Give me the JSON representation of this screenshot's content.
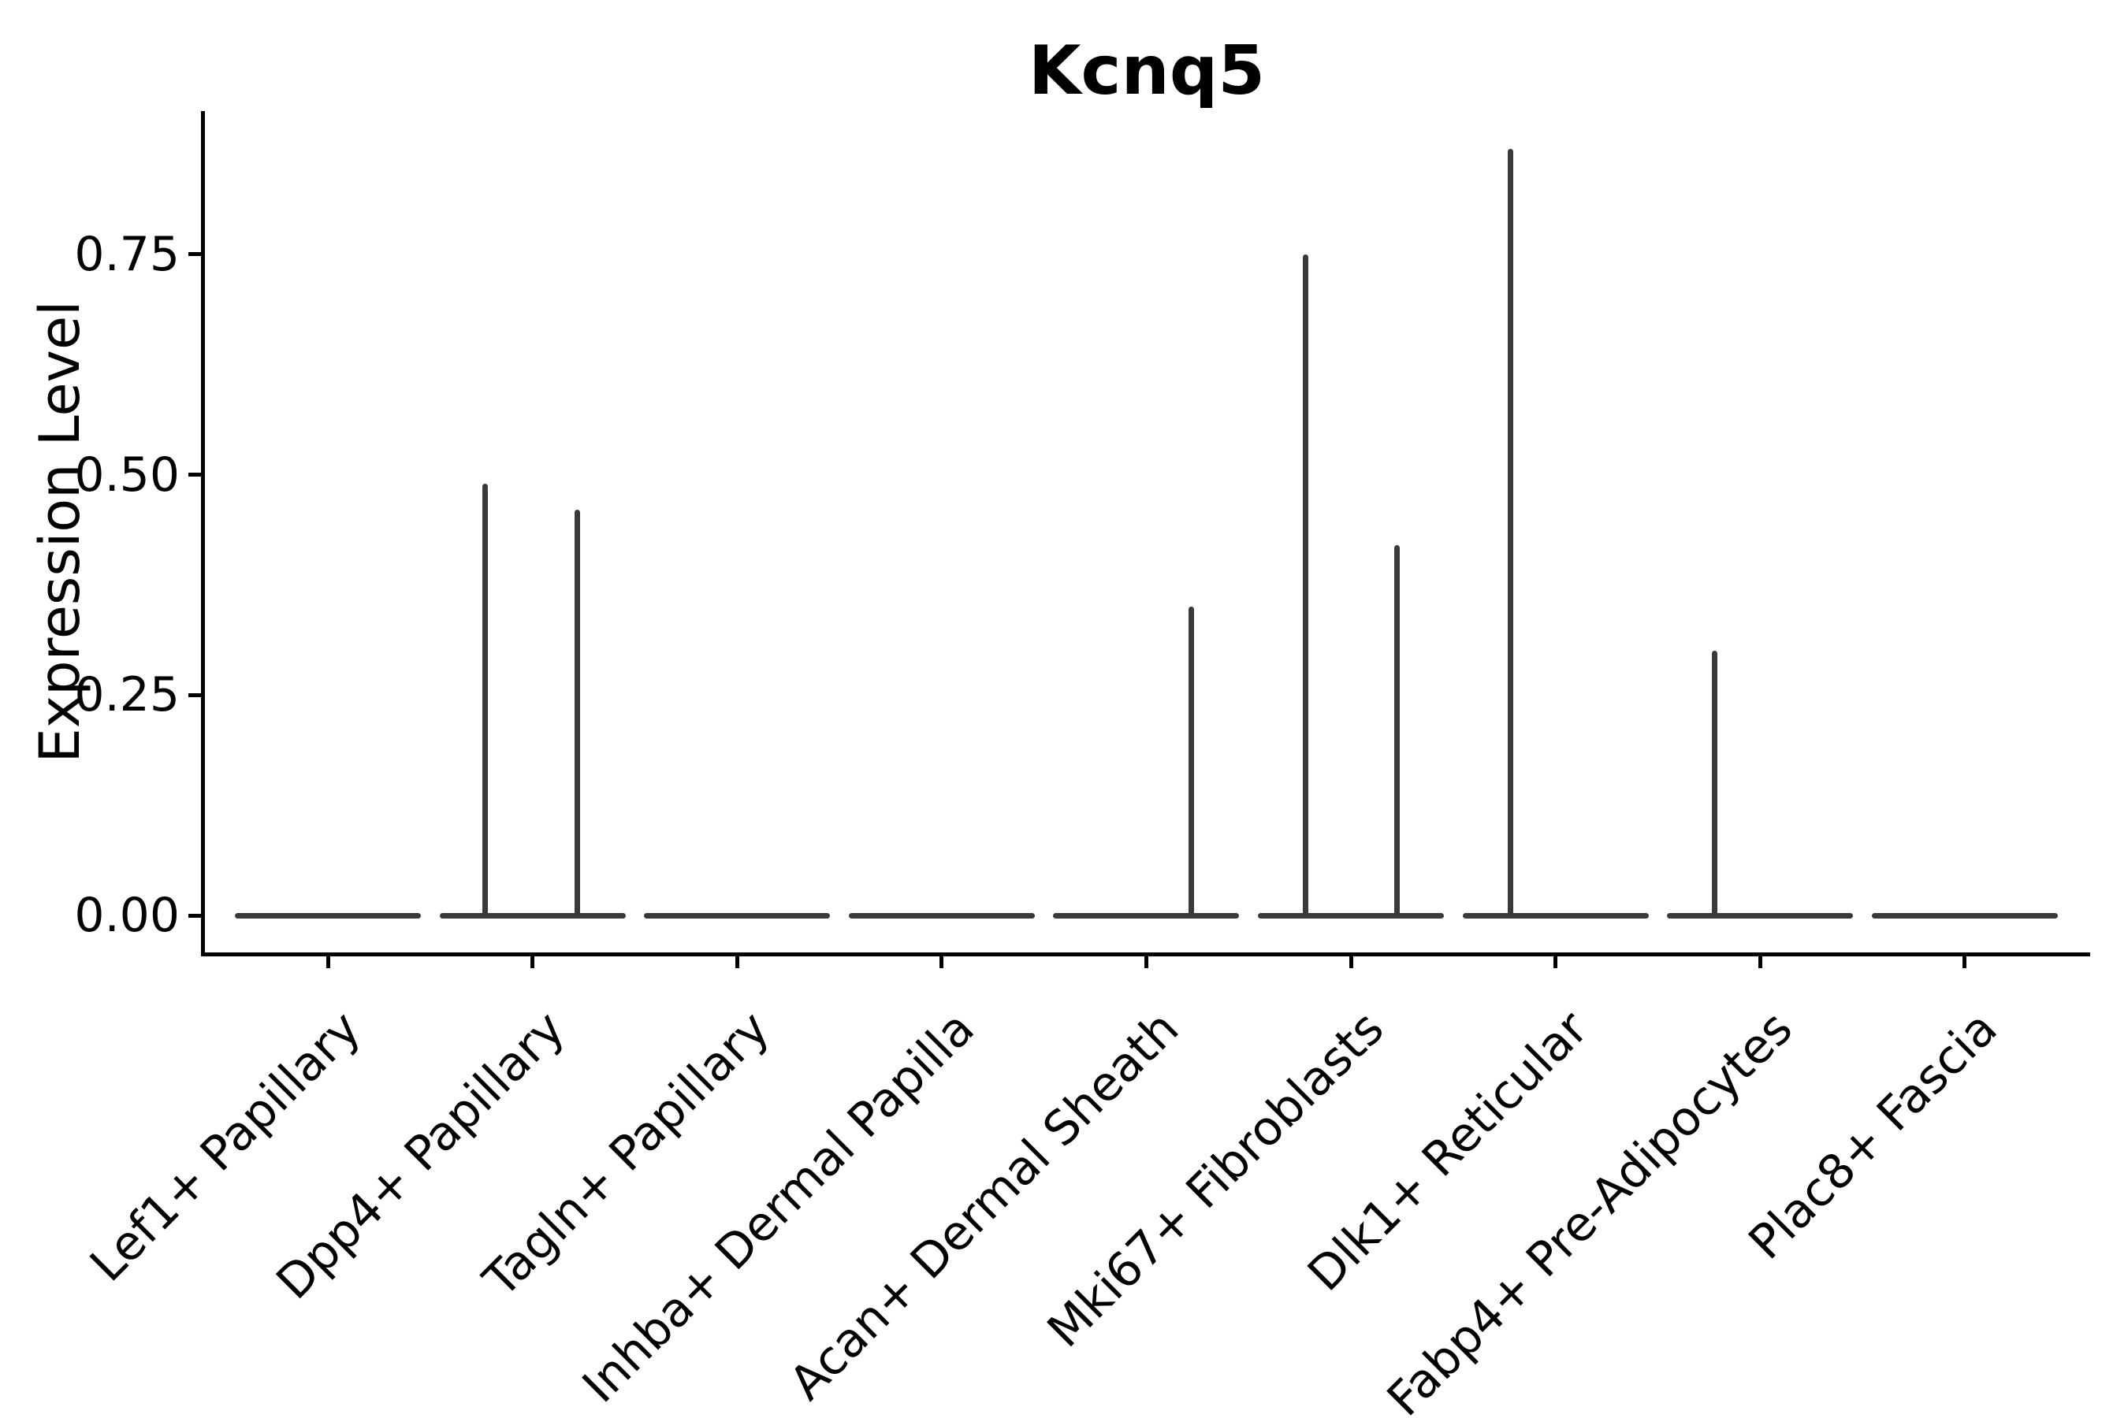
{
  "colors": {
    "violin_outline": "#3a3a3a",
    "axis": "#000000",
    "text": "#000000",
    "background": "#ffffff"
  },
  "chart_data": {
    "type": "violin",
    "title": "Kcnq5",
    "xlabel": "",
    "ylabel": "Expression Level",
    "ylim": [
      0,
      0.91
    ],
    "grid": "off",
    "legend": "none",
    "yticks": [
      0,
      0.25,
      0.5,
      0.75
    ],
    "ytick_labels": [
      "0.00",
      "0.25",
      "0.50",
      "0.75"
    ],
    "categories": [
      "Lef1+ Papillary",
      "Dpp4+ Papillary",
      "Tagln+ Papillary",
      "Inhba+ Dermal Papilla",
      "Acan+ Dermal Sheath",
      "Mki67+ Fibroblasts",
      "Dlk1+ Reticular",
      "Fabp4+ Pre-Adipocytes",
      "Plac8+ Fascia"
    ],
    "violins": [
      {
        "category": "Lef1+ Papillary",
        "bulk_value": 0,
        "spikes": []
      },
      {
        "category": "Dpp4+ Papillary",
        "bulk_value": 0,
        "spikes": [
          {
            "value": 0.49,
            "offset": -0.231
          },
          {
            "value": 0.46,
            "offset": 0.22
          }
        ]
      },
      {
        "category": "Tagln+ Papillary",
        "bulk_value": 0,
        "spikes": []
      },
      {
        "category": "Inhba+ Dermal Papilla",
        "bulk_value": 0,
        "spikes": []
      },
      {
        "category": "Acan+ Dermal Sheath",
        "bulk_value": 0,
        "spikes": [
          {
            "value": 0.35,
            "offset": 0.22
          }
        ]
      },
      {
        "category": "Mki67+ Fibroblasts",
        "bulk_value": 0,
        "spikes": [
          {
            "value": 0.75,
            "offset": -0.223
          },
          {
            "value": 0.42,
            "offset": 0.227
          }
        ]
      },
      {
        "category": "Dlk1+ Reticular",
        "bulk_value": 0,
        "spikes": [
          {
            "value": 0.87,
            "offset": -0.22
          }
        ]
      },
      {
        "category": "Fabp4+ Pre-Adipocytes",
        "bulk_value": 0,
        "spikes": [
          {
            "value": 0.3,
            "offset": -0.223
          }
        ]
      },
      {
        "category": "Plac8+ Fascia",
        "bulk_value": 0,
        "spikes": []
      }
    ]
  }
}
